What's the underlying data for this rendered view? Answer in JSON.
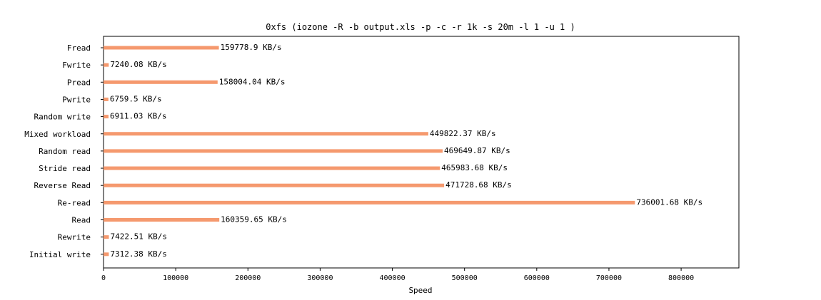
{
  "chart_data": {
    "type": "bar",
    "orientation": "horizontal",
    "title": "0xfs (iozone -R -b output.xls -p -c -r 1k -s 20m -l 1 -u 1 )",
    "xlabel": "Speed",
    "ylabel": "",
    "xlim": [
      0,
      880000
    ],
    "xticks": [
      0,
      100000,
      200000,
      300000,
      400000,
      500000,
      600000,
      700000,
      800000
    ],
    "xtick_labels": [
      "0",
      "100000",
      "200000",
      "300000",
      "400000",
      "500000",
      "600000",
      "700000",
      "800000"
    ],
    "grid": false,
    "legend": "none",
    "bar_color": "#f5996e",
    "categories": [
      "Fread",
      "Fwrite",
      "Pread",
      "Pwrite",
      "Random write",
      "Mixed workload",
      "Random read",
      "Stride read",
      "Reverse Read",
      "Re-read",
      "Read",
      "Rewrite",
      "Initial write"
    ],
    "values": [
      159778.9,
      7240.08,
      158004.04,
      6759.5,
      6911.03,
      449822.37,
      469649.87,
      465983.68,
      471728.68,
      736001.68,
      160359.65,
      7422.51,
      7312.38
    ],
    "value_labels": [
      "159778.9 KB/s",
      "7240.08 KB/s",
      "158004.04 KB/s",
      "6759.5 KB/s",
      "6911.03 KB/s",
      "449822.37 KB/s",
      "469649.87 KB/s",
      "465983.68 KB/s",
      "471728.68 KB/s",
      "736001.68 KB/s",
      "160359.65 KB/s",
      "7422.51 KB/s",
      "7312.38 KB/s"
    ]
  }
}
